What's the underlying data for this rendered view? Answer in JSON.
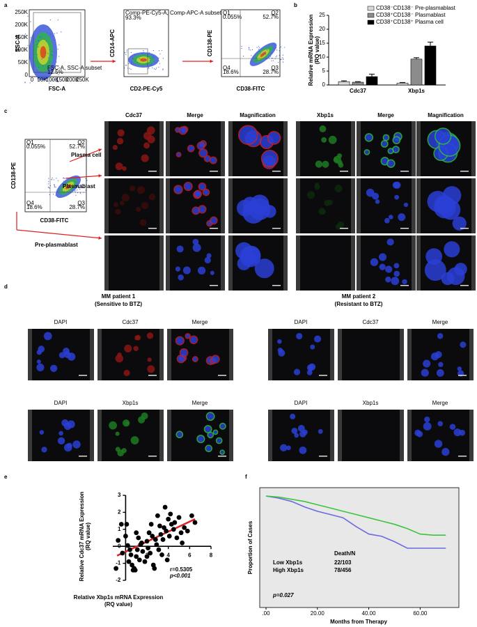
{
  "panel_labels": [
    "a",
    "b",
    "c",
    "d",
    "e",
    "f"
  ],
  "panel_a": {
    "plots": [
      {
        "y_label": "SSC-A",
        "x_label": "FSC-A",
        "gate_name": "FSC-A, SSC-A subset",
        "gate_pct": "12.5%",
        "x_ticks": [
          "0",
          "50K",
          "100K",
          "150K",
          "200K",
          "250K"
        ],
        "y_ticks": [
          "0",
          "50K",
          "100K",
          "150K",
          "200K",
          "250K"
        ]
      },
      {
        "y_label": "CD14-APC",
        "x_label": "CD2-PE-Cy5",
        "gate_name": "Comp-PE-Cy5-A, Comp-APC-A subset",
        "gate_pct": "93.3%"
      },
      {
        "y_label": "CD138-PE",
        "x_label": "CD38-FITC",
        "quadrants": [
          {
            "name": "Q1",
            "pct": "0.055%"
          },
          {
            "name": "Q2",
            "pct": "52.7%"
          },
          {
            "name": "Q4",
            "pct": "18.6%"
          },
          {
            "name": "Q3",
            "pct": "28.7%"
          }
        ]
      }
    ]
  },
  "panel_c": {
    "headers": [
      "Cdc37",
      "Merge",
      "Magnification",
      "Xbp1s",
      "Merge",
      "Magnification"
    ],
    "flow": {
      "y_label": "CD138-PE",
      "x_label": "CD38-FITC",
      "quadrants": [
        {
          "name": "Q1",
          "pct": "0.055%"
        },
        {
          "name": "Q2",
          "pct": "52.7%"
        },
        {
          "name": "Q4",
          "pct": "18.6%"
        },
        {
          "name": "Q3",
          "pct": "28.7%"
        }
      ]
    },
    "populations": [
      "Plasma cell",
      "Plasmablast",
      "Pre-plasmablast"
    ]
  },
  "panel_d": {
    "patients": [
      {
        "title": "MM patient 1",
        "subtitle": "(Sensitive to BTZ)",
        "rows": [
          [
            "DAPI",
            "Cdc37",
            "Merge"
          ],
          [
            "DAPI",
            "Xbp1s",
            "Merge"
          ]
        ]
      },
      {
        "title": "MM patient 2",
        "subtitle": "(Resistant to BTZ)",
        "rows": [
          [
            "DAPI",
            "Cdc37",
            "Merge"
          ],
          [
            "DAPI",
            "Xbp1s",
            "Merge"
          ]
        ]
      }
    ]
  },
  "chart_data": [
    {
      "type": "bar",
      "y_label": [
        "Relative mRNA Expression",
        "(RQ value)"
      ],
      "categories": [
        "Cdc37",
        "Xbp1s"
      ],
      "series": [
        {
          "name": "CD38⁻CD138⁻ Pre-plasmablast",
          "color": "#d9d9d9",
          "values": [
            1.2,
            0.7
          ],
          "errors": [
            0.3,
            0.2
          ]
        },
        {
          "name": "CD38⁺CD138⁻ Plasmablast",
          "color": "#8c8c8c",
          "values": [
            1.0,
            9.3
          ],
          "errors": [
            0.2,
            0.5
          ]
        },
        {
          "name": "CD38⁺CD138⁺ Plasma cell",
          "color": "#000000",
          "values": [
            3.0,
            14.0
          ],
          "errors": [
            0.9,
            1.4
          ]
        }
      ],
      "ylim": [
        0,
        25
      ],
      "yticks": [
        0,
        5,
        10,
        15,
        20,
        25
      ]
    },
    {
      "type": "scatter",
      "x_label": [
        "Relative Xbp1s mRNA Expression",
        "(RQ value)"
      ],
      "y_label": [
        "Relative Cdc37 mRNA Expression",
        "(RQ value)"
      ],
      "x": [
        -0.9,
        -0.7,
        -0.4,
        0.1,
        0,
        0.2,
        0.4,
        0.5,
        0.6,
        0.7,
        0.8,
        1.0,
        1.1,
        1.2,
        1.3,
        1.4,
        1.5,
        1.6,
        1.8,
        2.0,
        2.1,
        2.2,
        2.3,
        2.4,
        2.5,
        2.6,
        2.7,
        2.8,
        2.9,
        3.0,
        3.1,
        3.2,
        3.3,
        3.4,
        3.5,
        3.6,
        3.7,
        3.8,
        3.9,
        4.0,
        4.1,
        4.2,
        4.3,
        4.5,
        4.6,
        4.8,
        5.0,
        5.2,
        5.3,
        5.5,
        5.8,
        6.2,
        6.5,
        -0.3,
        0.3,
        1.0,
        2.0,
        0.9
      ],
      "values": [
        -1.3,
        0.35,
        1.3,
        1.3,
        0.6,
        0.05,
        -0.2,
        -0.5,
        -1.1,
        -1.4,
        -1.3,
        -0.6,
        -0.2,
        0.5,
        -0.8,
        0.1,
        0.2,
        -0.3,
        -0.9,
        0.3,
        -0.1,
        0.8,
        -0.4,
        1.3,
        0.6,
        -1.1,
        -1.3,
        0.4,
        0.1,
        1.8,
        -0.2,
        1.2,
        0.7,
        -0.5,
        0.4,
        1.1,
        2.3,
        0.9,
        -0.8,
        1.6,
        0.6,
        1.9,
        1.3,
        1.0,
        1.4,
        0.5,
        1.7,
        0.8,
        0.2,
        1.1,
        0.9,
        1.8,
        1.4,
        -0.4,
        -0.9,
        0.8,
        -0.6,
        -1.4
      ],
      "color": "#000000",
      "trend_line": {
        "x": [
          -0.8,
          6.5
        ],
        "values": [
          -0.55,
          1.6
        ],
        "color": "#e02020"
      },
      "annotations": [
        "r=0.5305",
        "p<0.001"
      ],
      "xlim": [
        -1.2,
        8
      ],
      "xticks": [
        2,
        4,
        6,
        8
      ],
      "ylim": [
        -2,
        3
      ],
      "yticks": [
        -2,
        -1,
        0,
        1,
        2,
        3
      ]
    },
    {
      "type": "line",
      "x_label": "Months from Therapy",
      "y_label": "Proportion of Cases",
      "x": [
        0,
        5,
        10,
        15,
        20,
        25,
        30,
        35,
        40,
        45,
        50,
        55,
        60,
        65,
        70
      ],
      "series": [
        {
          "name": "Low Xbp1s",
          "summary": "22/103",
          "color": "#6a6ae0",
          "values": [
            1,
            0.98,
            0.95,
            0.9,
            0.86,
            0.83,
            0.8,
            0.72,
            0.65,
            0.63,
            0.58,
            0.52,
            0.52,
            0.52,
            0.52
          ]
        },
        {
          "name": "High Xbp1s",
          "summary": "78/456",
          "color": "#3cc43c",
          "values": [
            1,
            0.99,
            0.97,
            0.95,
            0.92,
            0.89,
            0.86,
            0.83,
            0.8,
            0.77,
            0.74,
            0.7,
            0.65,
            0.64,
            0.64
          ]
        }
      ],
      "legend_title": "Death/N",
      "annotation": "p=0.027",
      "xlim": [
        0,
        74
      ],
      "xticks": [
        {
          "value": 0,
          "label": ".00"
        },
        {
          "value": 20,
          "label": "20.00"
        },
        {
          "value": 40,
          "label": "40.00"
        },
        {
          "value": 60,
          "label": "60.00"
        }
      ],
      "ylim": [
        0,
        1
      ],
      "background": "#e8e8e8"
    }
  ]
}
